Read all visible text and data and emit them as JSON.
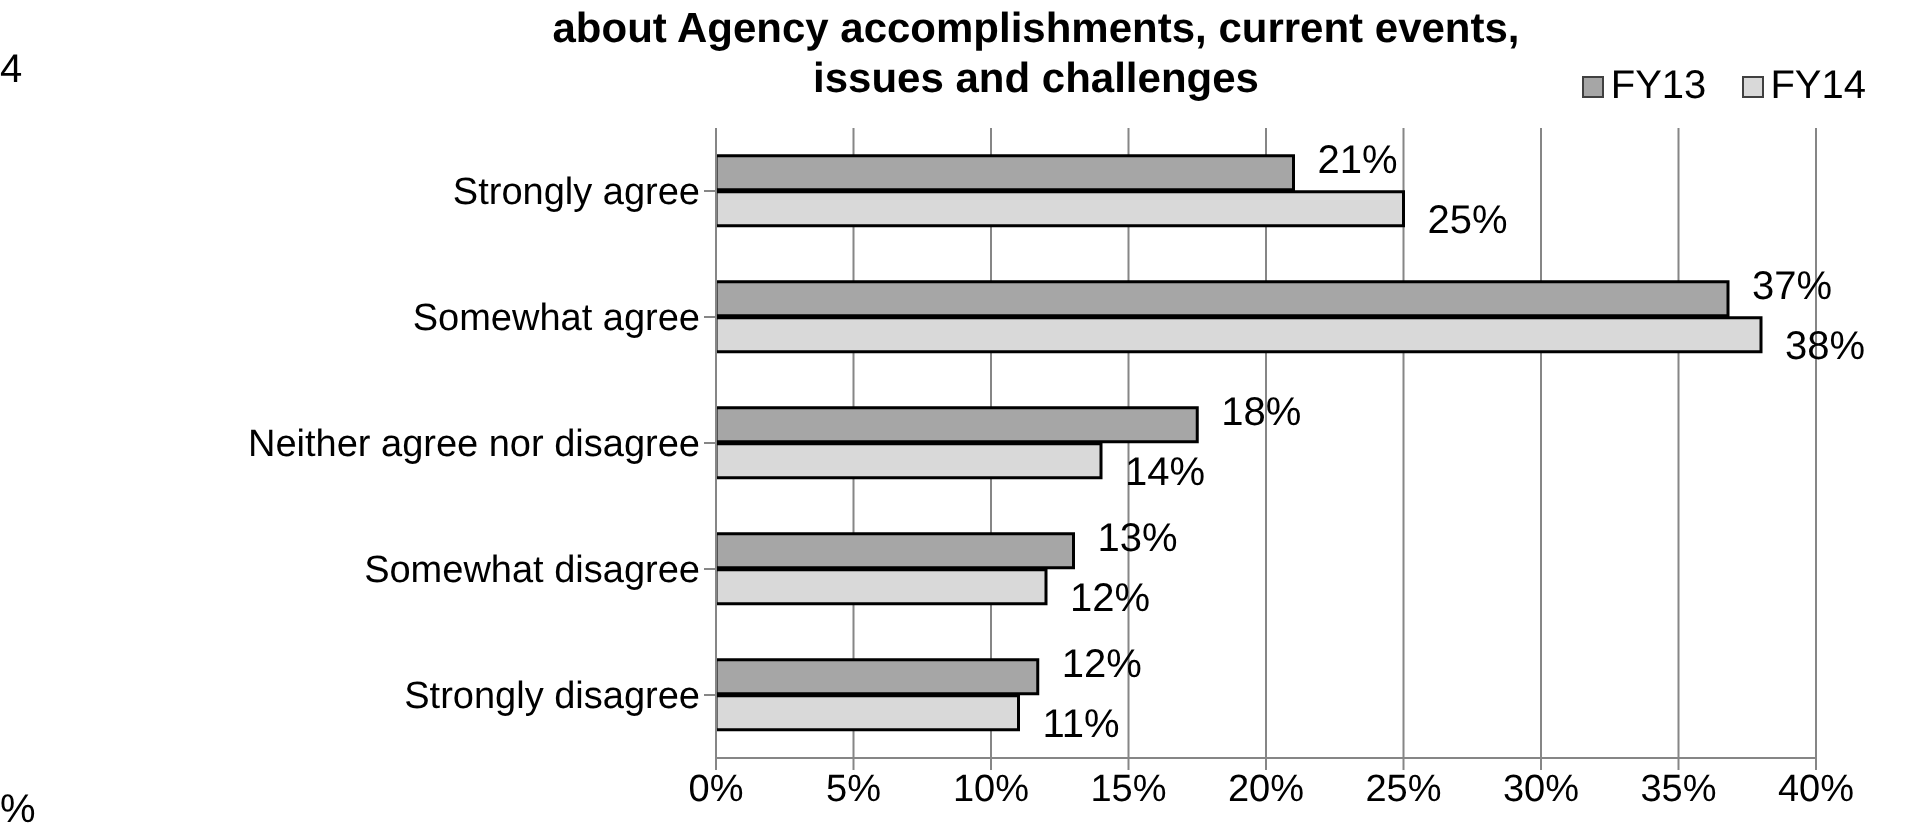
{
  "chart_data": {
    "type": "bar",
    "orientation": "horizontal",
    "title": "about Agency accomplishments, current events, issues and challenges",
    "categories": [
      "Strongly agree",
      "Somewhat agree",
      "Neither agree nor disagree",
      "Somewhat disagree",
      "Strongly disagree"
    ],
    "series": [
      {
        "name": "FY13",
        "color": "#a6a6a6",
        "values": [
          21,
          36.8,
          17.5,
          13,
          11.7
        ],
        "value_labels": [
          "21%",
          "37%",
          "18%",
          "13%",
          "12%"
        ]
      },
      {
        "name": "FY14",
        "color": "#d9d9d9",
        "values": [
          25,
          38,
          14,
          12,
          11
        ],
        "value_labels": [
          "25%",
          "38%",
          "14%",
          "12%",
          "11%"
        ]
      }
    ],
    "xlim": [
      0,
      40
    ],
    "xticks": [
      {
        "value": 0,
        "label": "0%"
      },
      {
        "value": 5,
        "label": "5%"
      },
      {
        "value": 10,
        "label": "10%"
      },
      {
        "value": 15,
        "label": "15%"
      },
      {
        "value": 20,
        "label": "20%"
      },
      {
        "value": 25,
        "label": "25%"
      },
      {
        "value": 30,
        "label": "30%"
      },
      {
        "value": 35,
        "label": "35%"
      },
      {
        "value": 40,
        "label": "40%"
      }
    ],
    "grid": "x",
    "legend": "top right",
    "annotations": [
      "4",
      "%"
    ]
  }
}
